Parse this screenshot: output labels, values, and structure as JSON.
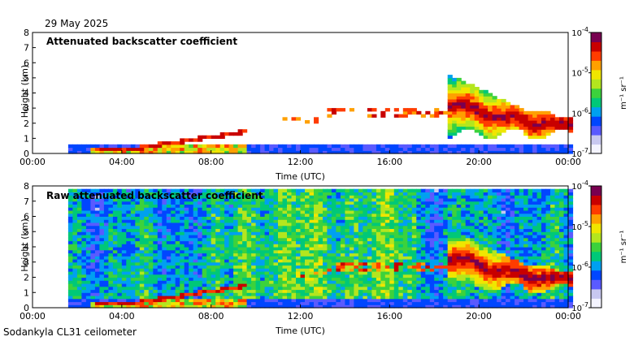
{
  "date_label": "29 May 2025",
  "footer_label": "Sodankyla CL31 ceilometer",
  "chart_data": [
    {
      "type": "heatmap",
      "title": "Attenuated backscatter coefficient",
      "xlabel": "Time (UTC)",
      "ylabel": "Height (km)",
      "xticks": [
        "00:00",
        "04:00",
        "08:00",
        "12:00",
        "16:00",
        "20:00",
        "00:00"
      ],
      "xlim_hours": [
        0,
        24
      ],
      "ylim": [
        0,
        8
      ],
      "yticks": [
        0,
        1,
        2,
        3,
        4,
        5,
        6,
        7,
        8
      ],
      "data_start_hour": 1.6,
      "colorbar": {
        "label": "m⁻¹ sr⁻¹",
        "scale": "log",
        "range": [
          1e-07,
          0.0001
        ],
        "ticks": [
          {
            "base": "10",
            "exp": "-4"
          },
          {
            "base": "10",
            "exp": "-5"
          },
          {
            "base": "10",
            "exp": "-6"
          },
          {
            "base": "10",
            "exp": "-7"
          }
        ]
      },
      "grid": false
    },
    {
      "type": "heatmap",
      "title": "Raw attenuated backscatter coefficient",
      "xlabel": "Time (UTC)",
      "ylabel": "Height (km)",
      "xticks": [
        "00:00",
        "04:00",
        "08:00",
        "12:00",
        "16:00",
        "20:00",
        "00:00"
      ],
      "xlim_hours": [
        0,
        24
      ],
      "ylim": [
        0,
        8
      ],
      "yticks": [
        0,
        1,
        2,
        3,
        4,
        5,
        6,
        7,
        8
      ],
      "data_start_hour": 1.6,
      "colorbar": {
        "label": "m⁻¹ sr⁻¹",
        "scale": "log",
        "range": [
          1e-07,
          0.0001
        ],
        "ticks": [
          {
            "base": "10",
            "exp": "-4"
          },
          {
            "base": "10",
            "exp": "-5"
          },
          {
            "base": "10",
            "exp": "-6"
          },
          {
            "base": "10",
            "exp": "-7"
          }
        ]
      },
      "grid": false
    }
  ],
  "colors": {
    "colormap": [
      "#f4f4ff",
      "#c8c8f0",
      "#5a5aff",
      "#0046ff",
      "#00a0f0",
      "#00c878",
      "#3cd23c",
      "#b4e61e",
      "#f0e600",
      "#ffa000",
      "#ff3c00",
      "#c80000",
      "#780050"
    ],
    "frame": "#000000"
  }
}
